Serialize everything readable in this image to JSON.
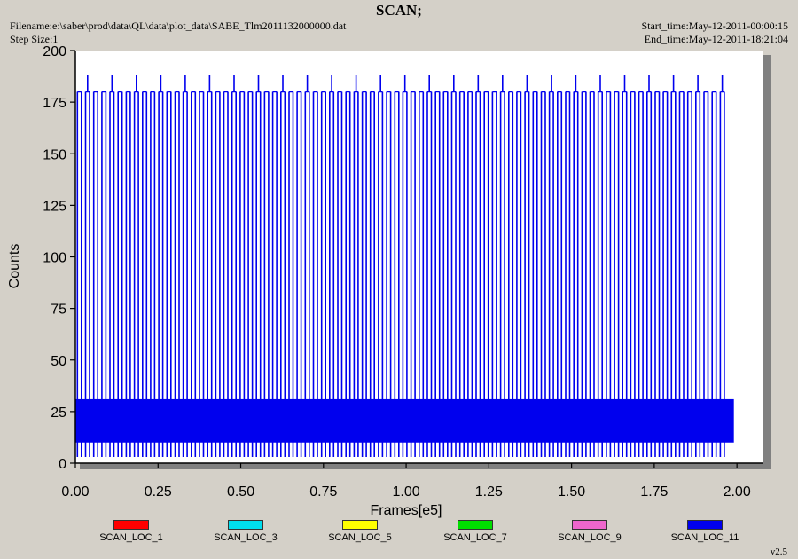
{
  "header": {
    "title": "SCAN;",
    "filename": "Filename:e:\\saber\\prod\\data\\QL\\data\\plot_data\\SABE_Tlm2011132000000.dat",
    "step_size": "Step Size:1",
    "start_time": "Start_time:May-12-2011-00:00:15",
    "end_time": "End_time:May-12-2011-18:21:04"
  },
  "version": "v2.5",
  "chart_data": {
    "type": "line",
    "title": "SCAN;",
    "xlabel": "Frames[e5]",
    "ylabel": "Counts",
    "xlim": [
      0,
      2.08
    ],
    "ylim": [
      0,
      200
    ],
    "x_ticks": [
      "0.00",
      "0.25",
      "0.50",
      "0.75",
      "1.00",
      "1.25",
      "1.50",
      "1.75",
      "2.00"
    ],
    "y_ticks": [
      "0",
      "25",
      "50",
      "75",
      "100",
      "125",
      "150",
      "175",
      "200"
    ],
    "grid": false,
    "legend_position": "bottom",
    "series": [
      {
        "name": "SCAN_LOC_1",
        "color": "#ff0000",
        "values": []
      },
      {
        "name": "SCAN_LOC_3",
        "color": "#00ddee",
        "values": []
      },
      {
        "name": "SCAN_LOC_5",
        "color": "#ffff00",
        "values": []
      },
      {
        "name": "SCAN_LOC_7",
        "color": "#00dd00",
        "values": []
      },
      {
        "name": "SCAN_LOC_9",
        "color": "#ee66cc",
        "values": []
      },
      {
        "name": "SCAN_LOC_11",
        "color": "#0000ee",
        "scan_x_start": 0.0,
        "scan_x_end": 1.98,
        "scan_period": 0.0246,
        "scan_peak": 180,
        "scan_tall_peak": 188,
        "scan_tall_every": 3,
        "scan_trough": 3,
        "band_low": 10,
        "band_high": 31
      }
    ]
  }
}
